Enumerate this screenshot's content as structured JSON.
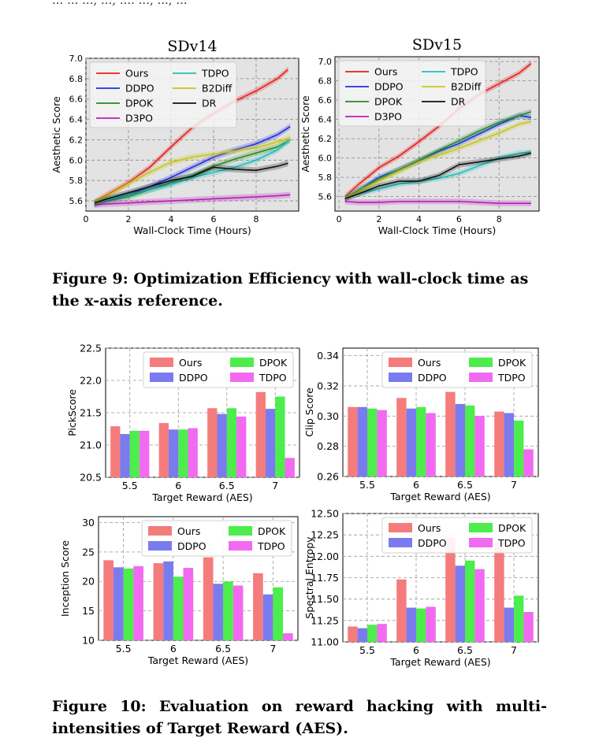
{
  "header_fragment": "... ... ..., ..., .... ..., ..., ...",
  "figure9": {
    "caption": "Figure 9: Optimization Efficiency with wall-clock time as the x-axis reference.",
    "legend_order": [
      "Ours",
      "TDPO",
      "DDPO",
      "B2Diff",
      "DPOK",
      "DR",
      "D3PO"
    ]
  },
  "figure10": {
    "caption": "Figure 10: Evaluation on reward hacking with multi-intensities of Target Reward (AES).",
    "legend_order": [
      "Ours",
      "DPOK",
      "DDPO",
      "TDPO"
    ]
  },
  "colors": {
    "Ours": "#e8201c",
    "DDPO": "#1c2ee8",
    "DPOK": "#228b22",
    "D3PO": "#bb1cbb",
    "TDPO": "#1fbfbf",
    "B2Diff": "#c6c61c",
    "DR": "#111111",
    "bar_Ours": "#f47c7c",
    "bar_DDPO": "#7b7bf0",
    "bar_DPOK": "#4ced4c",
    "bar_TDPO": "#f16af1"
  },
  "chart_data": [
    {
      "type": "line",
      "title": "SDv14",
      "xlabel": "Wall-Clock Time (Hours)",
      "ylabel": "Aesthetic Score",
      "xlim": [
        0,
        10
      ],
      "ylim": [
        5.5,
        7.0
      ],
      "xticks": [
        "0",
        "2",
        "4",
        "6",
        "8"
      ],
      "yticks": [
        "5.6",
        "5.8",
        "6.0",
        "6.2",
        "6.4",
        "6.6",
        "6.8",
        "7.0"
      ],
      "grid": true,
      "legend": "top-left",
      "series": [
        {
          "name": "Ours",
          "x": [
            0.4,
            1,
            2,
            3,
            4,
            5,
            6,
            7,
            8,
            9,
            9.5
          ],
          "y": [
            5.59,
            5.66,
            5.78,
            5.93,
            6.13,
            6.32,
            6.46,
            6.58,
            6.68,
            6.8,
            6.89
          ]
        },
        {
          "name": "DDPO",
          "x": [
            0.4,
            1,
            2,
            3,
            4,
            5,
            6,
            7,
            8,
            9,
            9.6
          ],
          "y": [
            5.57,
            5.61,
            5.66,
            5.74,
            5.83,
            5.93,
            6.03,
            6.1,
            6.16,
            6.25,
            6.33
          ]
        },
        {
          "name": "DPOK",
          "x": [
            0.4,
            1,
            2,
            3,
            4,
            5,
            6,
            7,
            8,
            9,
            9.6
          ],
          "y": [
            5.57,
            5.6,
            5.64,
            5.71,
            5.78,
            5.85,
            5.94,
            6.01,
            6.07,
            6.13,
            6.2
          ]
        },
        {
          "name": "D3PO",
          "x": [
            0.4,
            1,
            2,
            3,
            4,
            5,
            6,
            7,
            8,
            9,
            9.6
          ],
          "y": [
            5.56,
            5.57,
            5.58,
            5.59,
            5.6,
            5.61,
            5.62,
            5.63,
            5.64,
            5.65,
            5.66
          ]
        },
        {
          "name": "TDPO",
          "x": [
            0.4,
            1,
            2,
            3,
            4,
            5,
            6,
            7,
            8,
            9,
            9.6
          ],
          "y": [
            5.58,
            5.61,
            5.66,
            5.71,
            5.76,
            5.83,
            5.88,
            5.93,
            6.0,
            6.1,
            6.2
          ]
        },
        {
          "name": "B2Diff",
          "x": [
            0.4,
            1,
            2,
            3,
            4,
            5,
            6,
            7,
            8,
            9,
            9.6
          ],
          "y": [
            5.59,
            5.65,
            5.77,
            5.88,
            5.98,
            6.03,
            6.06,
            6.09,
            6.12,
            6.18,
            6.22
          ]
        },
        {
          "name": "DR",
          "x": [
            0.4,
            1,
            2,
            3,
            4,
            5,
            6,
            7,
            8,
            9,
            9.5
          ],
          "y": [
            5.58,
            5.62,
            5.68,
            5.74,
            5.8,
            5.84,
            5.93,
            5.91,
            5.9,
            5.94,
            5.97
          ]
        }
      ]
    },
    {
      "type": "line",
      "title": "SDv15",
      "xlabel": "Wall-Clock Time (Hours)",
      "ylabel": "Aesthetic Score",
      "xlim": [
        -0.2,
        10
      ],
      "ylim": [
        5.45,
        7.05
      ],
      "xticks": [
        "0",
        "2",
        "4",
        "6",
        "8"
      ],
      "yticks": [
        "5.6",
        "5.8",
        "6.0",
        "6.2",
        "6.4",
        "6.6",
        "6.8",
        "7.0"
      ],
      "grid": true,
      "legend": "top-left",
      "series": [
        {
          "name": "Ours",
          "x": [
            0.3,
            1,
            2,
            3,
            4,
            5,
            6,
            7,
            8,
            9,
            9.6
          ],
          "y": [
            5.6,
            5.73,
            5.9,
            6.02,
            6.17,
            6.33,
            6.51,
            6.66,
            6.77,
            6.88,
            6.98
          ]
        },
        {
          "name": "DDPO",
          "x": [
            0.3,
            1,
            2,
            3,
            4,
            5,
            6,
            7,
            8,
            9,
            9.6
          ],
          "y": [
            5.58,
            5.67,
            5.8,
            5.88,
            5.97,
            6.07,
            6.15,
            6.25,
            6.35,
            6.44,
            6.42
          ]
        },
        {
          "name": "DPOK",
          "x": [
            0.3,
            1,
            2,
            3,
            4,
            5,
            6,
            7,
            8,
            9,
            9.6
          ],
          "y": [
            5.58,
            5.67,
            5.78,
            5.88,
            5.98,
            6.08,
            6.18,
            6.28,
            6.37,
            6.44,
            6.48
          ]
        },
        {
          "name": "D3PO",
          "x": [
            0.3,
            1,
            2,
            3,
            4,
            5,
            6,
            7,
            8,
            9,
            9.6
          ],
          "y": [
            5.55,
            5.54,
            5.54,
            5.55,
            5.55,
            5.55,
            5.55,
            5.54,
            5.53,
            5.53,
            5.53
          ]
        },
        {
          "name": "TDPO",
          "x": [
            0.3,
            1,
            2,
            3,
            4,
            5,
            6,
            7,
            8,
            9,
            9.6
          ],
          "y": [
            5.59,
            5.63,
            5.68,
            5.73,
            5.76,
            5.79,
            5.84,
            5.92,
            6.0,
            6.05,
            6.06
          ]
        },
        {
          "name": "B2Diff",
          "x": [
            0.3,
            1,
            2,
            3,
            4,
            5,
            6,
            7,
            8,
            9,
            9.6
          ],
          "y": [
            5.59,
            5.65,
            5.76,
            5.86,
            5.96,
            6.03,
            6.1,
            6.18,
            6.26,
            6.35,
            6.38
          ]
        },
        {
          "name": "DR",
          "x": [
            0.3,
            1,
            2,
            3,
            4,
            5,
            6,
            7,
            8,
            9,
            9.6
          ],
          "y": [
            5.58,
            5.63,
            5.71,
            5.76,
            5.76,
            5.82,
            5.93,
            5.96,
            5.99,
            6.02,
            6.05
          ]
        }
      ]
    },
    {
      "type": "bar",
      "xlabel": "Target Reward (AES)",
      "ylabel": "PickScore",
      "categories": [
        "5.5",
        "6",
        "6.5",
        "7"
      ],
      "ylim": [
        20.5,
        22.5
      ],
      "yticks": [
        "20.5",
        "21.0",
        "21.5",
        "22.0",
        "22.5"
      ],
      "grid": true,
      "legend": "top-right",
      "series": [
        {
          "name": "Ours",
          "values": [
            21.29,
            21.34,
            21.57,
            21.82
          ]
        },
        {
          "name": "DDPO",
          "values": [
            21.17,
            21.24,
            21.48,
            21.56
          ]
        },
        {
          "name": "DPOK",
          "values": [
            21.22,
            21.24,
            21.57,
            21.75
          ]
        },
        {
          "name": "TDPO",
          "values": [
            21.22,
            21.26,
            21.44,
            20.8
          ]
        }
      ]
    },
    {
      "type": "bar",
      "xlabel": "Target Reward (AES)",
      "ylabel": "Clip Score",
      "categories": [
        "5.5",
        "6",
        "6.5",
        "7"
      ],
      "ylim": [
        0.26,
        0.345
      ],
      "yticks": [
        "0.26",
        "0.28",
        "0.30",
        "0.32",
        "0.34"
      ],
      "grid": true,
      "legend": "top-right",
      "series": [
        {
          "name": "Ours",
          "values": [
            0.306,
            0.312,
            0.316,
            0.303
          ]
        },
        {
          "name": "DDPO",
          "values": [
            0.306,
            0.305,
            0.308,
            0.302
          ]
        },
        {
          "name": "DPOK",
          "values": [
            0.305,
            0.306,
            0.307,
            0.297
          ]
        },
        {
          "name": "TDPO",
          "values": [
            0.304,
            0.302,
            0.3,
            0.278
          ]
        }
      ]
    },
    {
      "type": "bar",
      "xlabel": "Target Reward (AES)",
      "ylabel": "Inception Score",
      "categories": [
        "5.5",
        "6",
        "6.5",
        "7"
      ],
      "ylim": [
        10,
        31
      ],
      "yticks": [
        "10",
        "15",
        "20",
        "25",
        "30"
      ],
      "grid": true,
      "legend": "top-right",
      "series": [
        {
          "name": "Ours",
          "values": [
            23.6,
            23.1,
            24.1,
            21.4
          ]
        },
        {
          "name": "DDPO",
          "values": [
            22.4,
            23.4,
            19.6,
            17.8
          ]
        },
        {
          "name": "DPOK",
          "values": [
            22.2,
            20.8,
            20.0,
            19.0
          ]
        },
        {
          "name": "TDPO",
          "values": [
            22.6,
            22.3,
            19.3,
            11.2
          ]
        }
      ]
    },
    {
      "type": "bar",
      "xlabel": "Target Reward (AES)",
      "ylabel": "Spectral Entropy",
      "categories": [
        "5.5",
        "6",
        "6.5",
        "7"
      ],
      "ylim": [
        11.0,
        12.5
      ],
      "yticks": [
        "11.00",
        "11.25",
        "11.50",
        "11.75",
        "12.00",
        "12.25",
        "12.50"
      ],
      "grid": true,
      "legend": "top-right",
      "series": [
        {
          "name": "Ours",
          "values": [
            11.18,
            11.73,
            12.22,
            12.16
          ]
        },
        {
          "name": "DDPO",
          "values": [
            11.16,
            11.4,
            11.89,
            11.4
          ]
        },
        {
          "name": "DPOK",
          "values": [
            11.2,
            11.39,
            11.95,
            11.54
          ]
        },
        {
          "name": "TDPO",
          "values": [
            11.21,
            11.41,
            11.85,
            11.35
          ]
        }
      ]
    }
  ]
}
